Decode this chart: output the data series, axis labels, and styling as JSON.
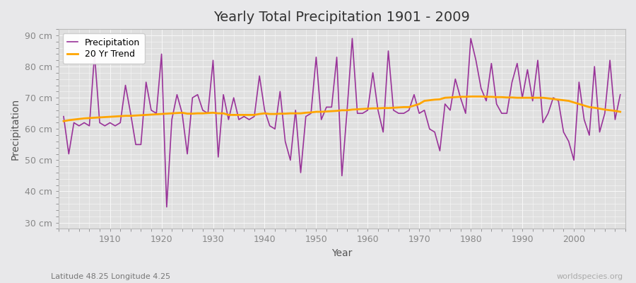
{
  "title": "Yearly Total Precipitation 1901 - 2009",
  "xlabel": "Year",
  "ylabel": "Precipitation",
  "lat_lon_label": "Latitude 48.25 Longitude 4.25",
  "watermark": "worldspecies.org",
  "ylim": [
    28,
    92
  ],
  "yticks": [
    30,
    40,
    50,
    60,
    70,
    80,
    90
  ],
  "ytick_labels": [
    "30 cm",
    "40 cm",
    "50 cm",
    "60 cm",
    "70 cm",
    "80 cm",
    "90 cm"
  ],
  "xlim": [
    1900,
    2010
  ],
  "precip_color": "#993399",
  "trend_color": "#FFA500",
  "bg_color": "#e8e8ea",
  "plot_bg_color": "#e0e0e0",
  "grid_color": "#f8f8f8",
  "years": [
    1901,
    1902,
    1903,
    1904,
    1905,
    1906,
    1907,
    1908,
    1909,
    1910,
    1911,
    1912,
    1913,
    1914,
    1915,
    1916,
    1917,
    1918,
    1919,
    1920,
    1921,
    1922,
    1923,
    1924,
    1925,
    1926,
    1927,
    1928,
    1929,
    1930,
    1931,
    1932,
    1933,
    1934,
    1935,
    1936,
    1937,
    1938,
    1939,
    1940,
    1941,
    1942,
    1943,
    1944,
    1945,
    1946,
    1947,
    1948,
    1949,
    1950,
    1951,
    1952,
    1953,
    1954,
    1955,
    1956,
    1957,
    1958,
    1959,
    1960,
    1961,
    1962,
    1963,
    1964,
    1965,
    1966,
    1967,
    1968,
    1969,
    1970,
    1971,
    1972,
    1973,
    1974,
    1975,
    1976,
    1977,
    1978,
    1979,
    1980,
    1981,
    1982,
    1983,
    1984,
    1985,
    1986,
    1987,
    1988,
    1989,
    1990,
    1991,
    1992,
    1993,
    1994,
    1995,
    1996,
    1997,
    1998,
    1999,
    2000,
    2001,
    2002,
    2003,
    2004,
    2005,
    2006,
    2007,
    2008,
    2009
  ],
  "precipitation": [
    64,
    52,
    62,
    61,
    62,
    61,
    84,
    62,
    61,
    62,
    61,
    62,
    74,
    65,
    55,
    55,
    75,
    66,
    65,
    84,
    35,
    63,
    71,
    65,
    52,
    70,
    71,
    66,
    65,
    82,
    51,
    71,
    63,
    70,
    63,
    64,
    63,
    64,
    77,
    66,
    61,
    60,
    72,
    56,
    50,
    66,
    46,
    64,
    65,
    83,
    63,
    67,
    67,
    83,
    45,
    66,
    89,
    65,
    65,
    66,
    78,
    66,
    59,
    85,
    66,
    65,
    65,
    66,
    71,
    65,
    66,
    60,
    59,
    53,
    68,
    66,
    76,
    70,
    65,
    89,
    82,
    73,
    69,
    81,
    68,
    65,
    65,
    75,
    81,
    70,
    79,
    69,
    82,
    62,
    65,
    70,
    69,
    59,
    56,
    50,
    75,
    63,
    58,
    80,
    59,
    65,
    82,
    63,
    71
  ],
  "trend": [
    62.5,
    62.8,
    63.0,
    63.2,
    63.4,
    63.5,
    63.6,
    63.7,
    63.8,
    63.9,
    64.0,
    64.1,
    64.2,
    64.2,
    64.3,
    64.4,
    64.5,
    64.6,
    64.7,
    64.8,
    64.9,
    65.0,
    65.1,
    65.2,
    64.9,
    64.9,
    65.0,
    65.0,
    65.1,
    65.2,
    65.0,
    65.0,
    64.5,
    64.5,
    64.5,
    64.5,
    64.5,
    64.5,
    64.8,
    65.0,
    64.8,
    64.8,
    64.9,
    64.9,
    65.0,
    65.0,
    65.0,
    65.2,
    65.3,
    65.5,
    65.5,
    65.6,
    65.7,
    65.8,
    66.0,
    66.0,
    66.2,
    66.3,
    66.4,
    66.5,
    66.6,
    66.6,
    66.7,
    66.7,
    66.8,
    66.9,
    67.0,
    67.0,
    67.5,
    68.0,
    69.0,
    69.2,
    69.4,
    69.5,
    70.0,
    70.1,
    70.2,
    70.3,
    70.3,
    70.4,
    70.4,
    70.4,
    70.3,
    70.3,
    70.2,
    70.2,
    70.1,
    70.1,
    70.0,
    70.0,
    70.0,
    70.0,
    70.0,
    70.0,
    69.8,
    69.6,
    69.4,
    69.2,
    69.0,
    68.5,
    68.0,
    67.5,
    67.0,
    66.8,
    66.5,
    66.2,
    66.0,
    65.8,
    65.5
  ]
}
